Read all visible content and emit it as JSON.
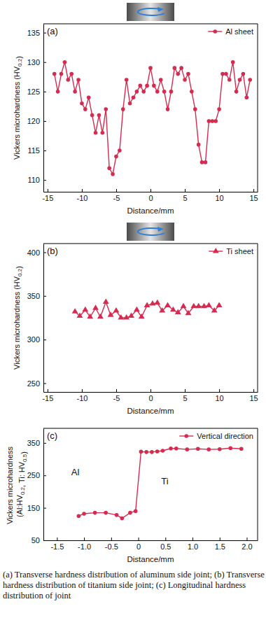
{
  "chart_data": [
    {
      "type": "line",
      "title": "(a)",
      "x_label": "Distance/mm",
      "y_label": "Vickers microhardness (HV0.2)",
      "x": [
        -14,
        -13.5,
        -13,
        -12.5,
        -12,
        -11.5,
        -11,
        -10.5,
        -10,
        -9.5,
        -9,
        -8.5,
        -8,
        -7.5,
        -7,
        -6.5,
        -6,
        -5.5,
        -5,
        -4.5,
        -4,
        -3.5,
        -3,
        -2.5,
        -2,
        -1.5,
        -1,
        -0.5,
        0,
        0.5,
        1,
        1.5,
        2,
        2.5,
        3,
        3.5,
        4,
        4.5,
        5,
        5.5,
        6,
        6.5,
        7,
        7.5,
        8,
        8.5,
        9,
        9.5,
        10,
        10.5,
        11,
        11.5,
        12,
        12.5,
        13,
        13.5,
        14,
        14.5
      ],
      "series": [
        {
          "name": "Al sheet",
          "color": "#d62b50",
          "marker": "circle",
          "values": [
            128,
            125,
            128,
            130,
            127,
            128,
            125,
            127,
            123,
            122,
            124,
            121,
            118,
            121,
            118,
            122,
            112,
            111,
            114,
            115,
            122,
            127,
            123,
            124,
            125,
            126,
            125,
            126,
            129,
            126,
            125,
            127,
            125,
            122,
            125,
            129,
            128,
            129,
            127,
            128,
            125,
            122,
            116,
            113,
            113,
            120,
            120,
            120,
            122,
            128,
            128,
            127,
            130,
            125,
            127,
            128,
            124,
            127
          ]
        }
      ],
      "xlim": [
        -15.6,
        15.6
      ],
      "xticks": [
        -15,
        -10,
        -5,
        0,
        5,
        10,
        15
      ],
      "ylim": [
        108,
        136.5
      ],
      "yticks": [
        110,
        115,
        120,
        125,
        130,
        135
      ],
      "legend": "upper right"
    },
    {
      "type": "line",
      "title": "(b)",
      "x_label": "Distance/mm",
      "y_label": "Vickers microhardness (HV0.2)",
      "x": [
        -11,
        -10.3,
        -9.5,
        -8.8,
        -8,
        -7.3,
        -6.5,
        -5.8,
        -5,
        -4.3,
        -3.5,
        -2.8,
        -2,
        -1.3,
        -0.5,
        0.3,
        1,
        1.7,
        2.5,
        3.3,
        4,
        4.8,
        5.5,
        6.3,
        7,
        7.8,
        8.5,
        9.3,
        10
      ],
      "series": [
        {
          "name": "Ti sheet",
          "color": "#d62b50",
          "marker": "triangle",
          "values": [
            332,
            327,
            334,
            326,
            336,
            326,
            343,
            328,
            333,
            325,
            325,
            327,
            334,
            326,
            339,
            341,
            342,
            333,
            339,
            334,
            331,
            338,
            330,
            338,
            338,
            338,
            339,
            333,
            339
          ]
        }
      ],
      "xlim": [
        -15.6,
        15.6
      ],
      "xticks": [
        -15,
        -10,
        -5,
        0,
        5,
        10,
        15
      ],
      "ylim": [
        240,
        410
      ],
      "yticks": [
        250,
        300,
        350,
        400
      ],
      "legend": "upper right"
    },
    {
      "type": "line",
      "title": "(c)",
      "x_label": "Distance/mm",
      "y_label": "Vickers microhardness (Al:HV0.2, Ti: HV0.5)",
      "annotations": [
        "Al",
        "Ti"
      ],
      "x": [
        -1.1,
        -1.0,
        -0.8,
        -0.6,
        -0.4,
        -0.3,
        -0.15,
        -0.05,
        0.05,
        0.15,
        0.25,
        0.35,
        0.45,
        0.6,
        0.7,
        0.9,
        1.1,
        1.3,
        1.5,
        1.7,
        1.9
      ],
      "series": [
        {
          "name": "Vertical direction",
          "color": "#d62b50",
          "marker": "circle",
          "values": [
            125,
            132,
            135,
            135,
            128,
            118,
            135,
            140,
            323,
            322,
            322,
            324,
            326,
            333,
            333,
            330,
            332,
            330,
            331,
            334,
            332
          ]
        }
      ],
      "xlim": [
        -1.75,
        2.2
      ],
      "xticks": [
        -1.5,
        {
          "value": -1.0,
          "label": "-1.0"
        },
        -0.5,
        0,
        0.5,
        {
          "value": 1.0,
          "label": "1.0"
        },
        1.5,
        {
          "value": 2.0,
          "label": "2.0"
        }
      ],
      "ylim": [
        50,
        395
      ],
      "yticks": [
        50,
        150,
        250,
        350
      ],
      "legend": "upper right"
    }
  ],
  "caption": "(a) Transverse hardness distribution of aluminum side joint; (b) Transverse hardness distribution of titanium side joint; (c) Longitudinal hardness distribution of joint"
}
